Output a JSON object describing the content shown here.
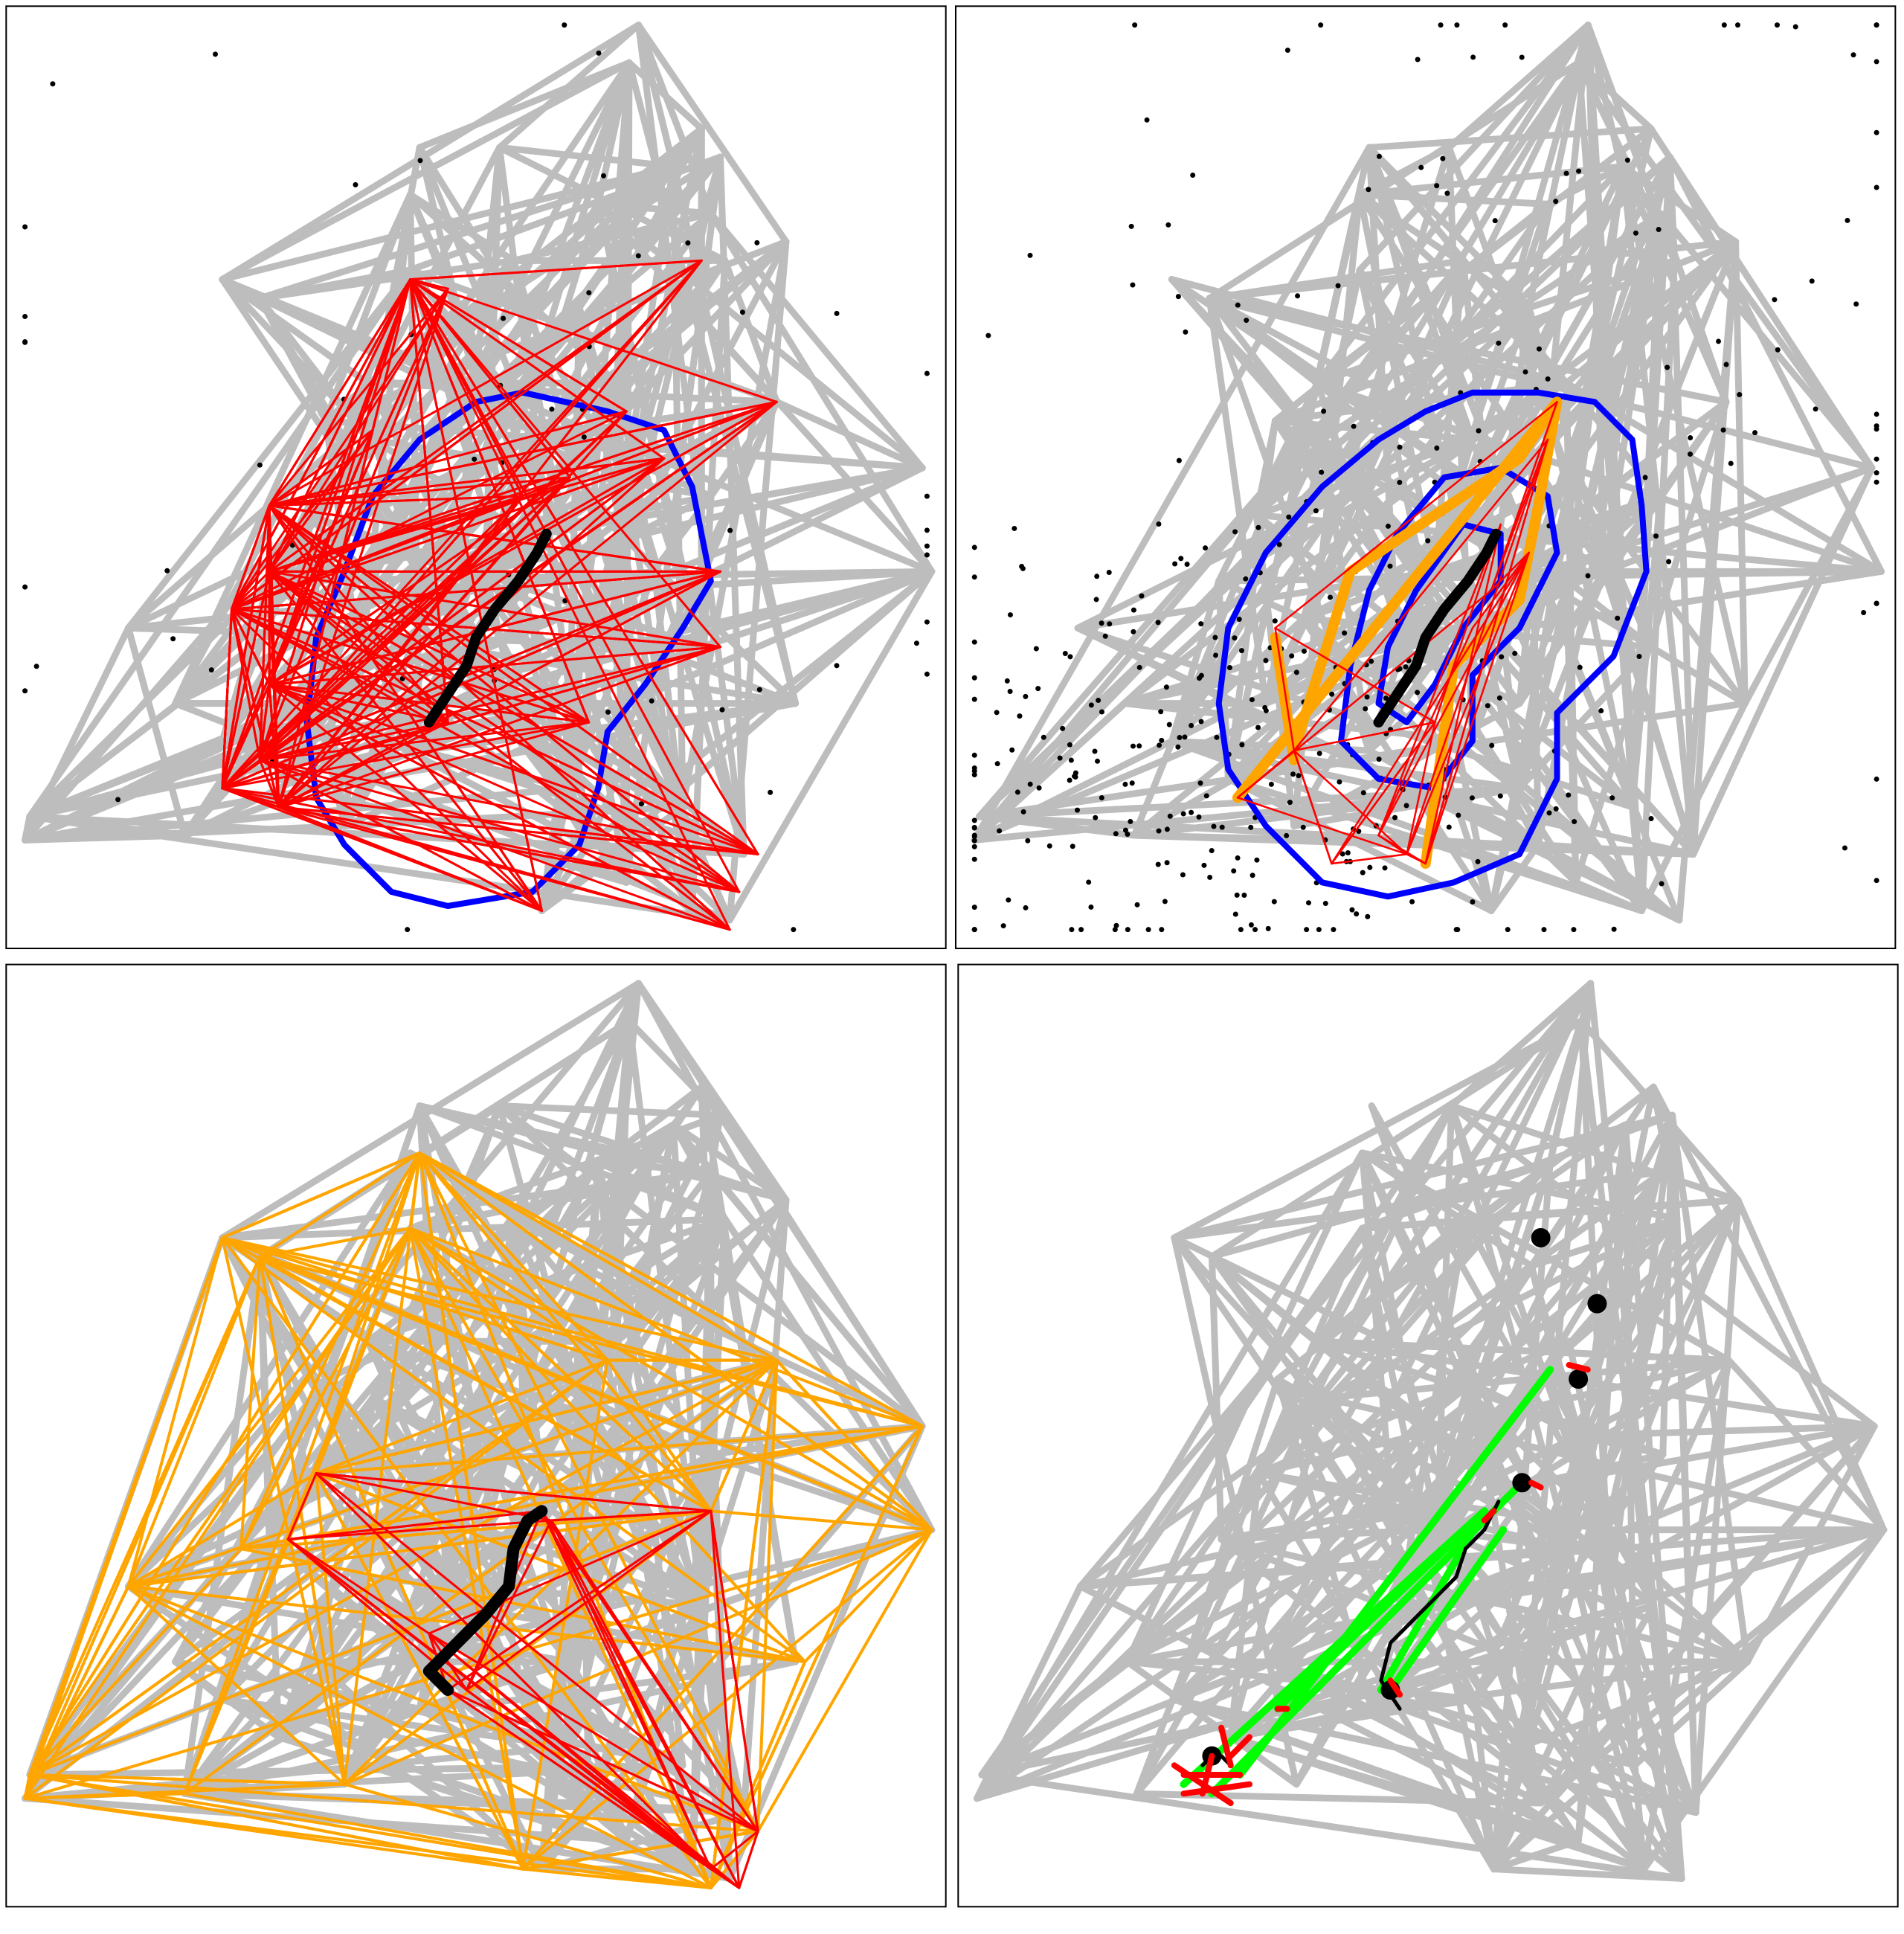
{
  "figure": {
    "panel_count": 4,
    "axes": "none",
    "text_labels": "none",
    "colors": {
      "background": "#ffffff",
      "frame": "#000000",
      "gray_network": "#bdbdbd",
      "red_edges": "#ff0000",
      "blue_contour": "#0000ff",
      "black_path": "#000000",
      "orange_edges": "#ffa500",
      "green_edges": "#00ff00",
      "nodes": "#000000"
    }
  },
  "panels": [
    {
      "name": "top-left",
      "layers": [
        "gray-network",
        "black-scatter-points",
        "blue-contour",
        "dense-red-edges",
        "black-central-path"
      ]
    },
    {
      "name": "top-right",
      "layers": [
        "gray-network",
        "black-scatter-points",
        "nested-blue-contours",
        "orange-edges",
        "thin-red-edges",
        "black-central-path"
      ]
    },
    {
      "name": "bottom-left",
      "layers": [
        "gray-network",
        "orange-edges",
        "red-edges",
        "black-central-path"
      ]
    },
    {
      "name": "bottom-right",
      "layers": [
        "gray-network",
        "green-edges",
        "black-path",
        "black-nodes",
        "red-markers"
      ]
    }
  ]
}
